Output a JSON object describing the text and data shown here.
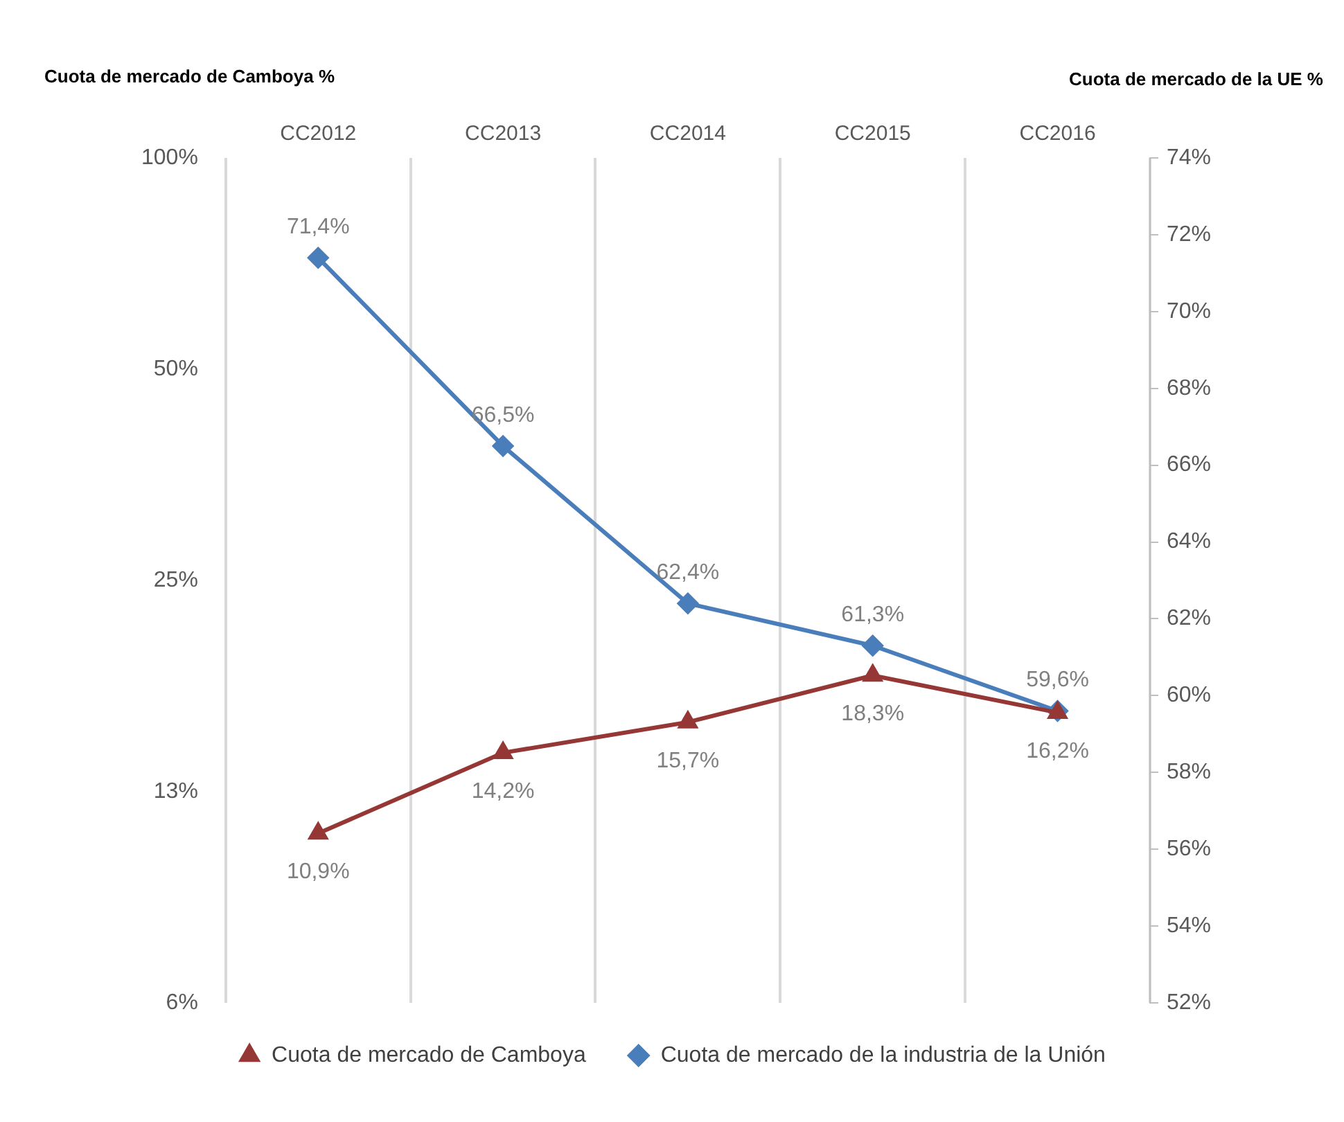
{
  "chart_data": {
    "type": "line",
    "ylabel": "Cuota de mercado de Camboya %",
    "y2label": "Cuota de mercado de la UE %",
    "categories": [
      "CC2012",
      "CC2013",
      "CC2014",
      "CC2015",
      "CC2016"
    ],
    "log": "y",
    "ylim": [
      6.25,
      100
    ],
    "yticks": [
      {
        "value": 6.25,
        "label": "6%"
      },
      {
        "value": 12.5,
        "label": "13%"
      },
      {
        "value": 25,
        "label": "25%"
      },
      {
        "value": 50,
        "label": "50%"
      },
      {
        "value": 100,
        "label": "100%"
      }
    ],
    "y2lim": [
      52,
      74
    ],
    "y2ticks": [
      {
        "value": 52,
        "label": "52%"
      },
      {
        "value": 54,
        "label": "54%"
      },
      {
        "value": 56,
        "label": "56%"
      },
      {
        "value": 58,
        "label": "58%"
      },
      {
        "value": 60,
        "label": "60%"
      },
      {
        "value": 62,
        "label": "62%"
      },
      {
        "value": 64,
        "label": "64%"
      },
      {
        "value": 66,
        "label": "66%"
      },
      {
        "value": 68,
        "label": "68%"
      },
      {
        "value": 70,
        "label": "70%"
      },
      {
        "value": 72,
        "label": "72%"
      },
      {
        "value": 74,
        "label": "74%"
      }
    ],
    "grid": "x",
    "legend": "bottom",
    "line_style": "solid",
    "series": [
      {
        "name": "Cuota de mercado de Camboya",
        "color": "#953735",
        "marker": "triangle",
        "values": [
          10.9,
          14.2,
          15.7,
          18.3,
          16.2
        ],
        "value_labels": [
          "10,9%",
          "14,2%",
          "15,7%",
          "18,3%",
          "16,2%"
        ]
      },
      {
        "name": "Cuota de mercado de la industria de la Unión",
        "color": "#4a7ebb",
        "marker": "diamond",
        "axis": "y2",
        "values": [
          71.4,
          66.5,
          62.4,
          61.3,
          59.6
        ],
        "value_labels": [
          "71,4%",
          "66,5%",
          "62,4%",
          "61,3%",
          "59,6%"
        ]
      }
    ]
  }
}
